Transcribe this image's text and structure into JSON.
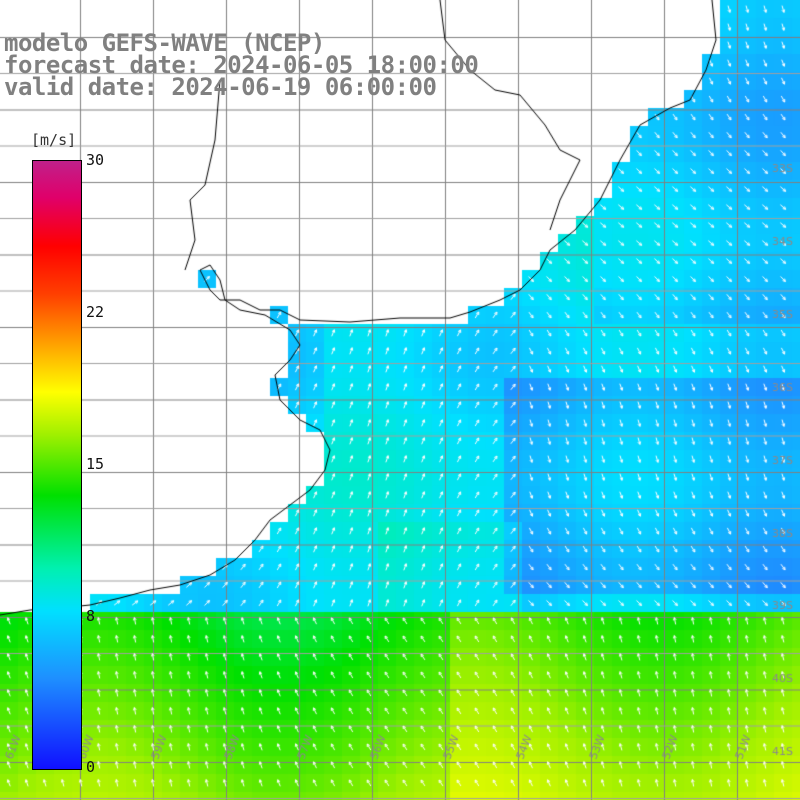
{
  "title": {
    "line1": "modelo GEFS-WAVE (NCEP)",
    "line2": "forecast date: 2024-06-05 18:00:00",
    "line3": "valid date: 2024-06-19 06:00:00"
  },
  "colorbar": {
    "units": "[m/s]",
    "ticks": [
      {
        "label": "30",
        "value": 30
      },
      {
        "label": "22",
        "value": 22
      },
      {
        "label": "15",
        "value": 15
      },
      {
        "label": "8",
        "value": 8
      },
      {
        "label": "0",
        "value": 0
      }
    ],
    "colors": [
      "#1010ff",
      "#1e90ff",
      "#00e0ff",
      "#00f0b0",
      "#00e000",
      "#a0f000",
      "#ffff00",
      "#ffa000",
      "#ff4000",
      "#ff0000",
      "#e0006a",
      "#c0208a"
    ]
  },
  "map": {
    "lat_labels": [
      "33S",
      "34S",
      "35S",
      "36S",
      "37S",
      "38S",
      "39S",
      "40S",
      "41S"
    ],
    "lon_labels": [
      "61W",
      "60W",
      "59W",
      "58W",
      "57W",
      "56W",
      "55W",
      "54W",
      "53W",
      "52W",
      "51W"
    ],
    "land_color": "#ffffff",
    "grid_color": "#808080",
    "arrow_color": "#ffffff"
  }
}
